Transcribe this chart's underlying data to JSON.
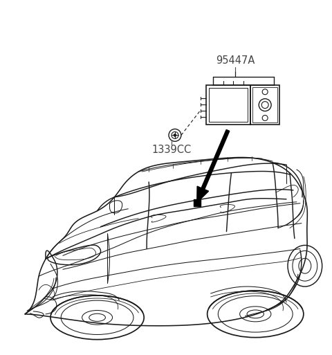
{
  "background_color": "#ffffff",
  "label_95447A": "95447A",
  "label_1339CC": "1339CC",
  "label_color": "#444444",
  "label_fontsize": 10.5,
  "line_color": "#1a1a1a",
  "ecu_color": "#1a1a1a",
  "figsize": [
    4.8,
    5.13
  ],
  "dpi": 100,
  "arrow_color": "#000000"
}
